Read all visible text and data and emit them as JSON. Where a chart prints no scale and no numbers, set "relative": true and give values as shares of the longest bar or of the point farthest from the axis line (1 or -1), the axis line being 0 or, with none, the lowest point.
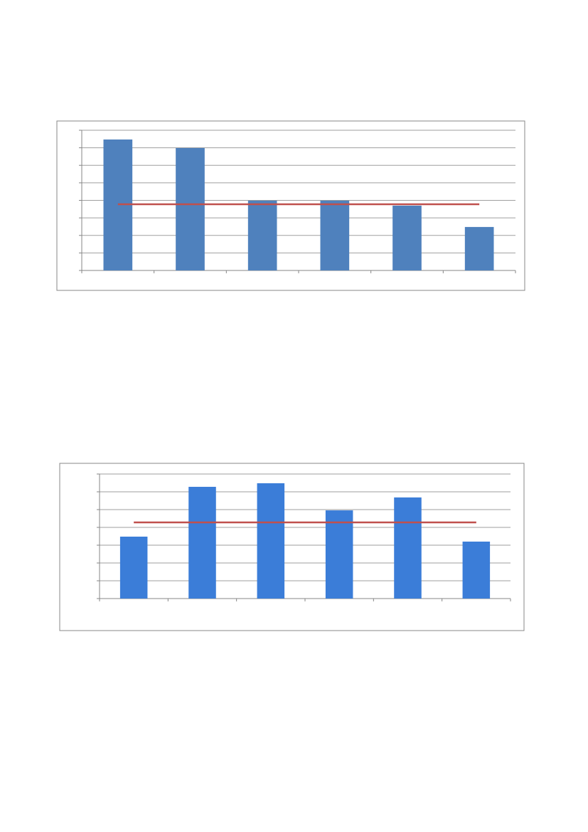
{
  "chart_data": [
    {
      "type": "bar",
      "relative": true,
      "grid": "y",
      "categories": [
        null,
        null,
        null,
        null,
        null,
        null
      ],
      "series": [
        {
          "color": "#4f81bd",
          "values": [
            1,
            0.935,
            0.533,
            0.533,
            0.495,
            0.332
          ]
        }
      ],
      "ref_lines": [
        {
          "axis": "y",
          "value": 0.505,
          "color": "#c0504d"
        }
      ]
    },
    {
      "type": "bar",
      "relative": true,
      "grid": "y",
      "categories": [
        null,
        null,
        null,
        null,
        null,
        null
      ],
      "series": [
        {
          "color": "#3b7dd8",
          "values": [
            0.537,
            0.969,
            1,
            0.765,
            0.877,
            0.494
          ]
        }
      ],
      "ref_lines": [
        {
          "axis": "y",
          "value": 0.66,
          "color": "#c0504d"
        }
      ]
    }
  ]
}
